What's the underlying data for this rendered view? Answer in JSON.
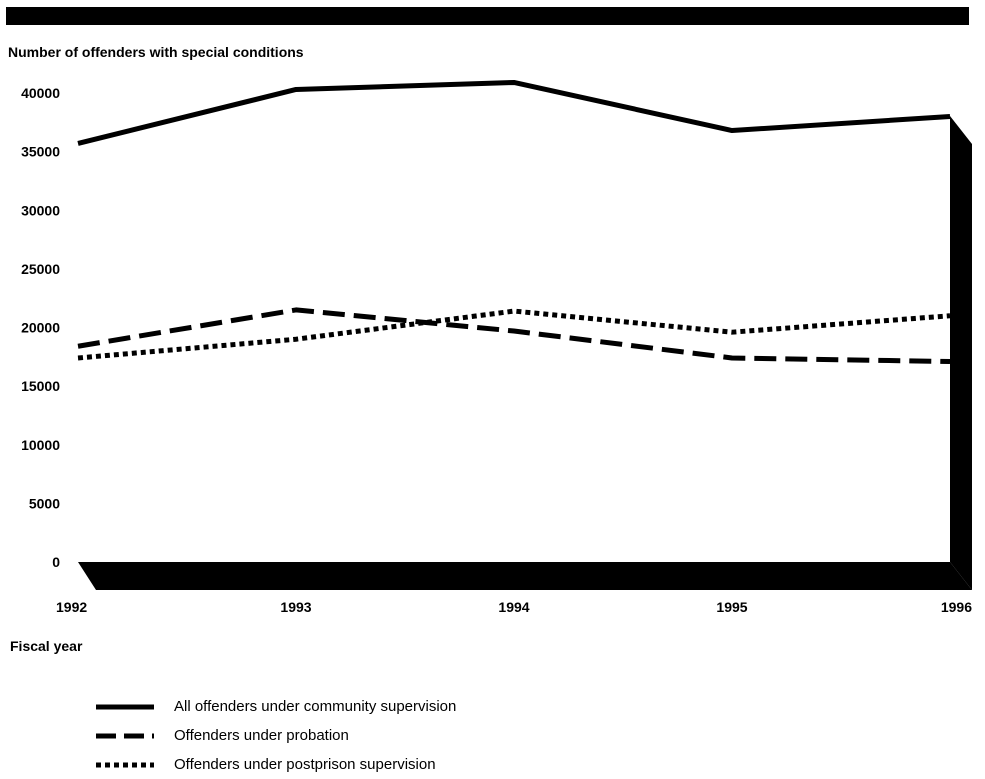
{
  "chart_data": {
    "type": "line",
    "title": "",
    "ylabel": "Number of offenders with special conditions",
    "xlabel": "Fiscal year",
    "categories": [
      "1992",
      "1993",
      "1994",
      "1995",
      "1996"
    ],
    "ylim": [
      0,
      40000
    ],
    "yticks": [
      "0",
      "5000",
      "10000",
      "15000",
      "20000",
      "25000",
      "30000",
      "35000",
      "40000"
    ],
    "grid": false,
    "series": [
      {
        "name": "All offenders under community supervision",
        "style": "solid",
        "values": [
          35700,
          40300,
          40900,
          36800,
          38000
        ]
      },
      {
        "name": "Offenders under probation",
        "style": "dashed",
        "values": [
          18400,
          21500,
          19700,
          17400,
          17100
        ]
      },
      {
        "name": "Offenders under postprison supervision",
        "style": "dotted",
        "values": [
          17400,
          19000,
          21400,
          19600,
          21000
        ]
      }
    ]
  },
  "colors": {
    "line": "#000000",
    "background": "#ffffff"
  }
}
